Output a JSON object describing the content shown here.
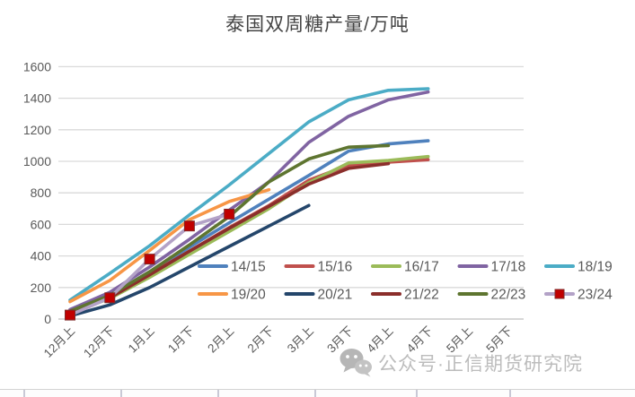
{
  "chart_data": {
    "type": "line",
    "title": "泰国双周糖产量/万吨",
    "xlabel": "",
    "ylabel": "",
    "ylim": [
      0,
      1600
    ],
    "yticks": [
      0,
      200,
      400,
      600,
      800,
      1000,
      1200,
      1400,
      1600
    ],
    "grid": "horizontal-only",
    "legend_position": "inside-bottom-two-rows",
    "categories": [
      "12月上",
      "12月下",
      "1月上",
      "1月下",
      "2月上",
      "2月下",
      "3月上",
      "3月下",
      "4月上",
      "4月下",
      "5月上",
      "5月下"
    ],
    "series": [
      {
        "name": "14/15",
        "color": "#4F81BD",
        "values": [
          55,
          150,
          300,
          455,
          610,
          760,
          910,
          1065,
          1110,
          1130
        ]
      },
      {
        "name": "15/16",
        "color": "#C0504D",
        "values": [
          50,
          140,
          285,
          430,
          580,
          720,
          880,
          975,
          995,
          1010
        ]
      },
      {
        "name": "16/17",
        "color": "#9BBB59",
        "values": [
          40,
          130,
          265,
          410,
          555,
          700,
          865,
          990,
          1005,
          1030
        ]
      },
      {
        "name": "17/18",
        "color": "#8064A2",
        "values": [
          60,
          170,
          330,
          505,
          690,
          870,
          1120,
          1285,
          1390,
          1440
        ]
      },
      {
        "name": "18/19",
        "color": "#4BACC6",
        "values": [
          120,
          290,
          465,
          660,
          850,
          1050,
          1250,
          1390,
          1450,
          1460
        ]
      },
      {
        "name": "19/20",
        "color": "#F79646",
        "values": [
          110,
          245,
          435,
          630,
          745,
          820
        ]
      },
      {
        "name": "20/21",
        "color": "#24466B",
        "values": [
          20,
          90,
          200,
          330,
          460,
          590,
          720
        ]
      },
      {
        "name": "21/22",
        "color": "#8B2E2B",
        "values": [
          45,
          135,
          280,
          430,
          575,
          715,
          855,
          955,
          985
        ]
      },
      {
        "name": "22/23",
        "color": "#5E7530",
        "values": [
          50,
          150,
          300,
          470,
          650,
          870,
          1015,
          1090,
          1100
        ]
      },
      {
        "name": "23/24",
        "color": "#B3A2C7",
        "values": [
          25,
          135,
          380,
          590,
          665
        ],
        "marker": {
          "shape": "square",
          "fill": "#C00000",
          "stroke": "#7F2A2A"
        }
      }
    ]
  },
  "watermark": {
    "icon": "wechat-icon",
    "text": "公众号·正信期货研究院"
  },
  "colors": {
    "gridline": "#D9D9D9",
    "axis_line": "#BFBFBF",
    "tick_label": "#595959",
    "legend_text": "#595959",
    "title_text": "#444444",
    "watermark_text": "#bcbcbc"
  }
}
